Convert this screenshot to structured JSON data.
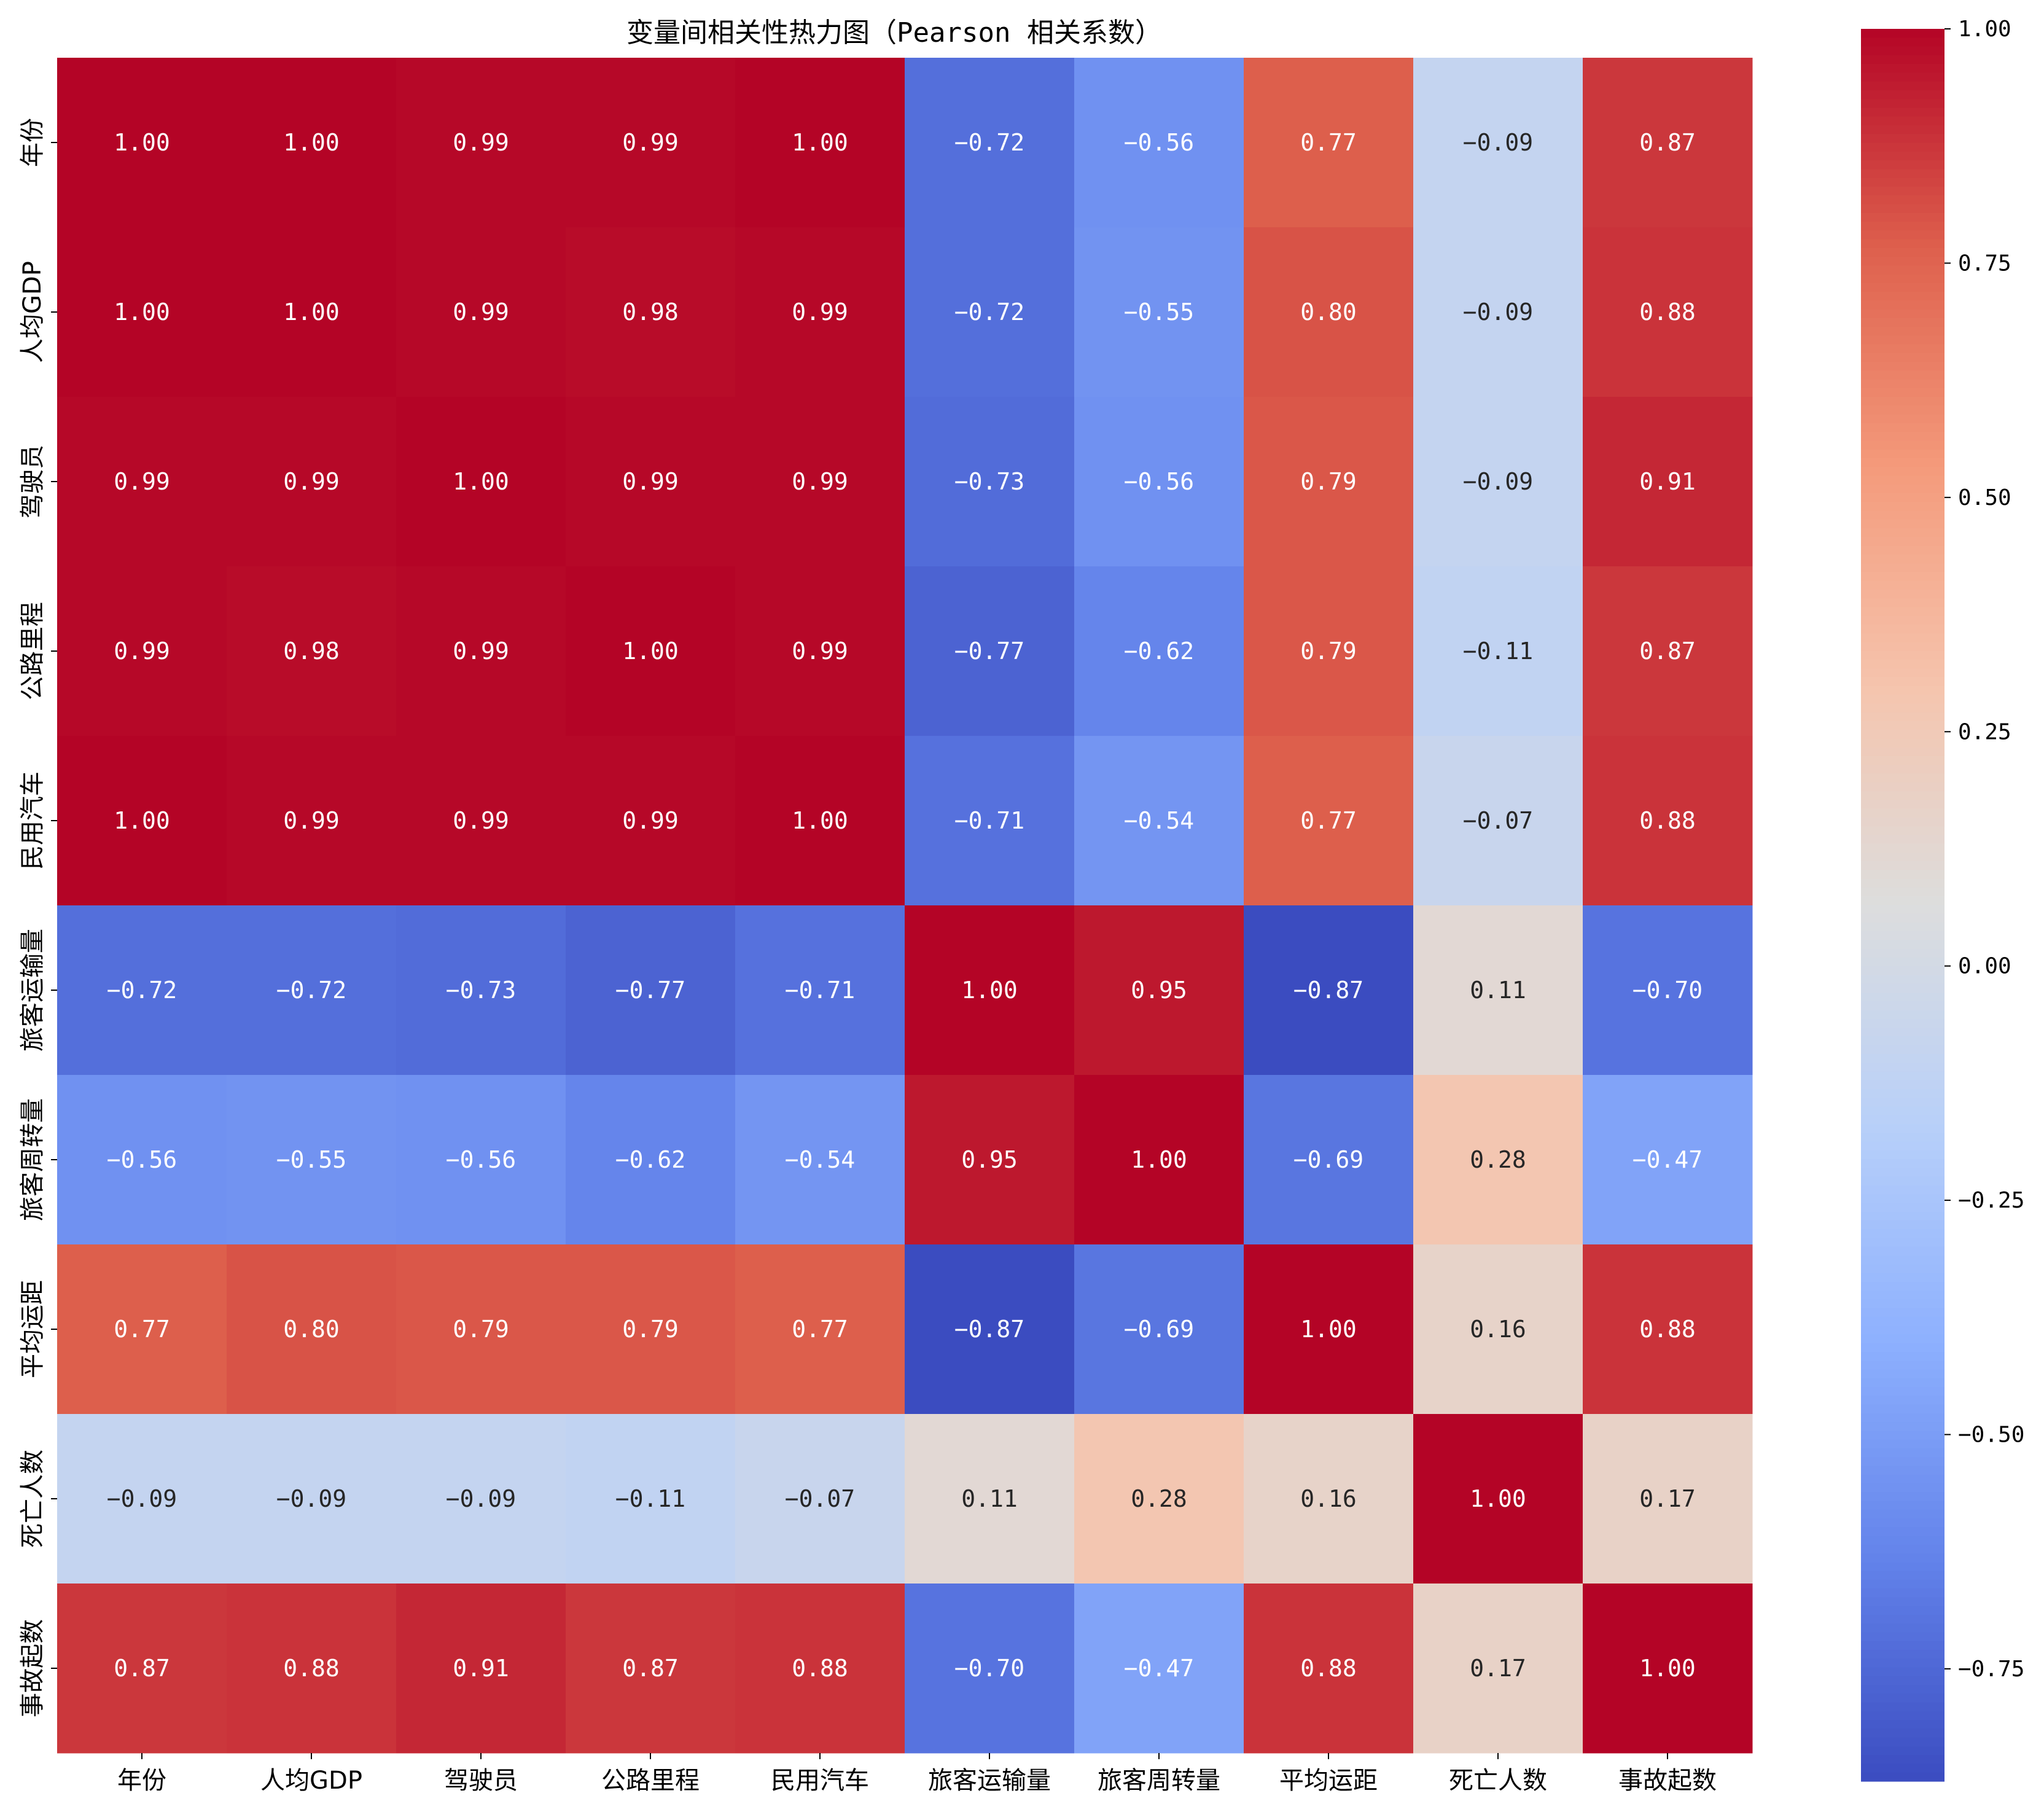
{
  "chart_data": {
    "type": "heatmap",
    "title": "变量间相关性热力图（Pearson 相关系数）",
    "row_labels": [
      "年份",
      "人均GDP",
      "驾驶员",
      "公路里程",
      "民用汽车",
      "旅客运输量",
      "旅客周转量",
      "平均运距",
      "死亡人数",
      "事故起数"
    ],
    "col_labels": [
      "年份",
      "人均GDP",
      "驾驶员",
      "公路里程",
      "民用汽车",
      "旅客运输量",
      "旅客周转量",
      "平均运距",
      "死亡人数",
      "事故起数"
    ],
    "values": [
      [
        1.0,
        1.0,
        0.99,
        0.99,
        1.0,
        -0.72,
        -0.56,
        0.77,
        -0.09,
        0.87
      ],
      [
        1.0,
        1.0,
        0.99,
        0.98,
        0.99,
        -0.72,
        -0.55,
        0.8,
        -0.09,
        0.88
      ],
      [
        0.99,
        0.99,
        1.0,
        0.99,
        0.99,
        -0.73,
        -0.56,
        0.79,
        -0.09,
        0.91
      ],
      [
        0.99,
        0.98,
        0.99,
        1.0,
        0.99,
        -0.77,
        -0.62,
        0.79,
        -0.11,
        0.87
      ],
      [
        1.0,
        0.99,
        0.99,
        0.99,
        1.0,
        -0.71,
        -0.54,
        0.77,
        -0.07,
        0.88
      ],
      [
        -0.72,
        -0.72,
        -0.73,
        -0.77,
        -0.71,
        1.0,
        0.95,
        -0.87,
        0.11,
        -0.7
      ],
      [
        -0.56,
        -0.55,
        -0.56,
        -0.62,
        -0.54,
        0.95,
        1.0,
        -0.69,
        0.28,
        -0.47
      ],
      [
        0.77,
        0.8,
        0.79,
        0.79,
        0.77,
        -0.87,
        -0.69,
        1.0,
        0.16,
        0.88
      ],
      [
        -0.09,
        -0.09,
        -0.09,
        -0.11,
        -0.07,
        0.11,
        0.28,
        0.16,
        1.0,
        0.17
      ],
      [
        0.87,
        0.88,
        0.91,
        0.87,
        0.88,
        -0.7,
        -0.47,
        0.88,
        0.17,
        1.0
      ]
    ],
    "colormap": "coolwarm",
    "vmin": -0.87,
    "vmax": 1.0,
    "colorbar_ticks": [
      1.0,
      0.75,
      0.5,
      0.25,
      0.0,
      -0.25,
      -0.5,
      -0.75
    ],
    "colorbar_tick_labels": [
      "1.00",
      "0.75",
      "0.50",
      "0.25",
      "0.00",
      "−0.25",
      "−0.50",
      "−0.75"
    ],
    "annotation_format": "2 decimals"
  }
}
